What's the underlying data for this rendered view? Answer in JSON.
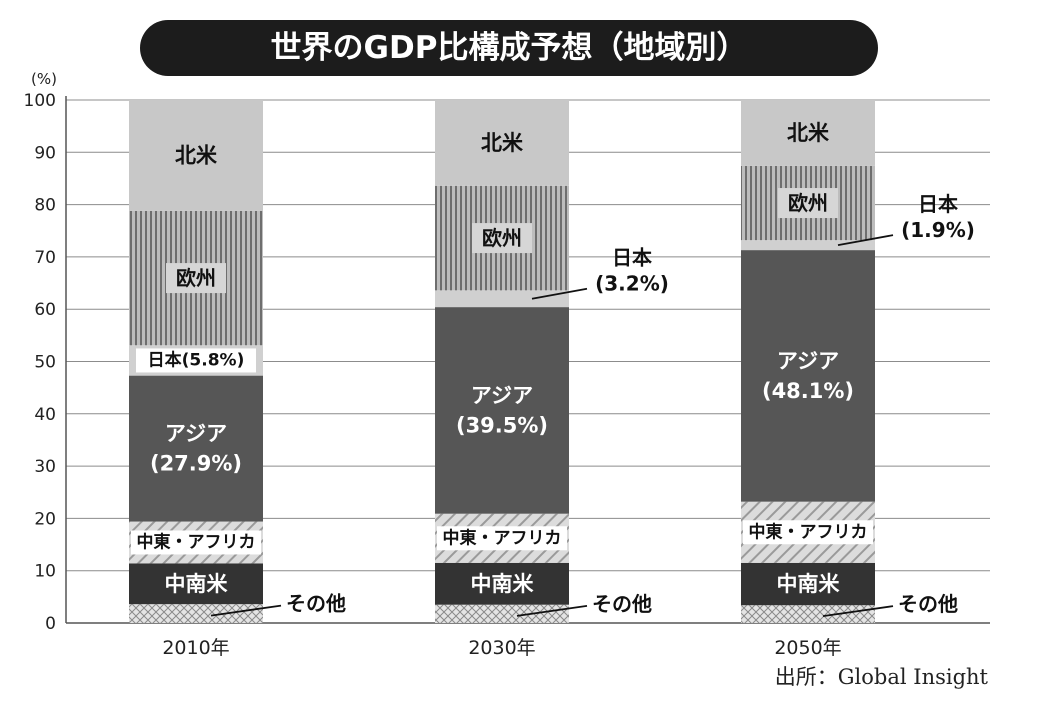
{
  "chart_data": {
    "type": "bar",
    "stacked": true,
    "title": "世界のGDP比構成予想（地域別）",
    "ylabel": "(%)",
    "ylim": [
      0,
      100
    ],
    "yticks": [
      0,
      10,
      20,
      30,
      40,
      50,
      60,
      70,
      80,
      90,
      100
    ],
    "grid": true,
    "categories": [
      "2010年",
      "2030年",
      "2050年"
    ],
    "series": [
      {
        "name": "その他",
        "values": [
          3.6,
          3.5,
          3.4
        ],
        "fill": "crosshatch"
      },
      {
        "name": "中南米",
        "values": [
          7.8,
          8.0,
          8.1
        ],
        "fill": "#333333"
      },
      {
        "name": "中東・アフリカ",
        "values": [
          8.0,
          9.4,
          11.7
        ],
        "fill": "diagonal"
      },
      {
        "name": "アジア",
        "values": [
          27.9,
          39.5,
          48.1
        ],
        "fill": "#565656"
      },
      {
        "name": "日本",
        "values": [
          5.8,
          3.2,
          1.9
        ],
        "fill": "#d0d0d0"
      },
      {
        "name": "欧州",
        "values": [
          25.7,
          20.0,
          14.2
        ],
        "fill": "vertical-stripes"
      },
      {
        "name": "北米",
        "values": [
          21.2,
          16.4,
          12.6
        ],
        "fill": "#c8c8c8"
      }
    ],
    "bar_labels": [
      [
        "その他",
        "中南米",
        "中東・アフリカ",
        "アジア\n(27.9%)",
        "日本(5.8%)",
        "欧州",
        "北米"
      ],
      [
        "その他",
        "中南米",
        "中東・アフリカ",
        "アジア\n(39.5%)",
        "日本\n(3.2%)",
        "欧州",
        "北米"
      ],
      [
        "その他",
        "中南米",
        "中東・アフリカ",
        "アジア\n(48.1%)",
        "日本\n(1.9%)",
        "欧州",
        "北米"
      ]
    ]
  },
  "source": "出所：Global Insight"
}
